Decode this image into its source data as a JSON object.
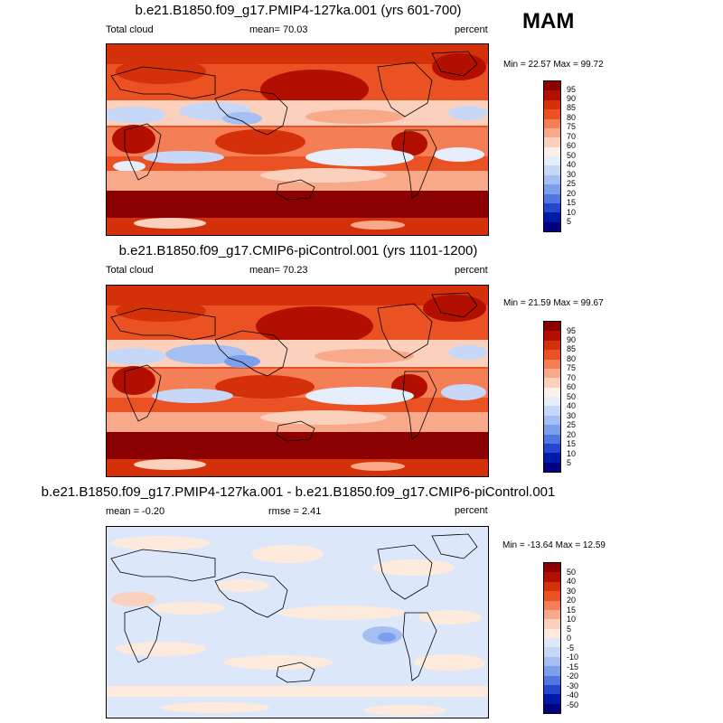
{
  "season": "MAM",
  "panels": [
    {
      "title": "b.e21.B1850.f09_g17.PMIP4-127ka.001 (yrs 601-700)",
      "left_label": "Total cloud",
      "center_label": "mean=  70.03",
      "right_label": "percent",
      "minmax_label": "Min =  22.57 Max =  99.72"
    },
    {
      "title": "b.e21.B1850.f09_g17.CMIP6-piControl.001 (yrs 1101-1200)",
      "left_label": "Total cloud",
      "center_label": "mean=  70.23",
      "right_label": "percent",
      "minmax_label": "Min =  21.59 Max =  99.67"
    },
    {
      "title": "b.e21.B1850.f09_g17.PMIP4-127ka.001 - b.e21.B1850.f09_g17.CMIP6-piControl.001",
      "left_label": "mean =  -0.20",
      "center_label": "rmse =   2.41",
      "right_label": "percent",
      "minmax_label": "Min = -13.64 Max =  12.59"
    }
  ],
  "chart_data": [
    {
      "type": "heatmap",
      "title": "b.e21.B1850.f09_g17.PMIP4-127ka.001 (yrs 601-700)",
      "variable": "Total cloud",
      "units": "percent",
      "mean": 70.03,
      "min": 22.57,
      "max": 99.72,
      "colorbar_levels": [
        "95",
        "90",
        "85",
        "80",
        "75",
        "70",
        "60",
        "50",
        "40",
        "30",
        "25",
        "20",
        "15",
        "10",
        "5"
      ],
      "colorbar_colors": [
        "#8b0000",
        "#b30f00",
        "#d4300a",
        "#ea5224",
        "#f47f56",
        "#f8a98a",
        "#fbd1bd",
        "#fdf0e8",
        "#e6eefc",
        "#c6d7f8",
        "#a6bff2",
        "#7d9eea",
        "#5276e0",
        "#2547cd",
        "#001aa8",
        "#000080"
      ]
    },
    {
      "type": "heatmap",
      "title": "b.e21.B1850.f09_g17.CMIP6-piControl.001 (yrs 1101-1200)",
      "variable": "Total cloud",
      "units": "percent",
      "mean": 70.23,
      "min": 21.59,
      "max": 99.67,
      "colorbar_levels": [
        "95",
        "90",
        "85",
        "80",
        "75",
        "70",
        "60",
        "50",
        "40",
        "30",
        "25",
        "20",
        "15",
        "10",
        "5"
      ],
      "colorbar_colors": [
        "#8b0000",
        "#b30f00",
        "#d4300a",
        "#ea5224",
        "#f47f56",
        "#f8a98a",
        "#fbd1bd",
        "#fdf0e8",
        "#e6eefc",
        "#c6d7f8",
        "#a6bff2",
        "#7d9eea",
        "#5276e0",
        "#2547cd",
        "#001aa8",
        "#000080"
      ]
    },
    {
      "type": "heatmap",
      "title": "b.e21.B1850.f09_g17.PMIP4-127ka.001 - b.e21.B1850.f09_g17.CMIP6-piControl.001",
      "units": "percent",
      "mean": -0.2,
      "rmse": 2.41,
      "min": -13.64,
      "max": 12.59,
      "colorbar_levels": [
        "50",
        "40",
        "30",
        "20",
        "15",
        "10",
        "5",
        "0",
        "-5",
        "-10",
        "-15",
        "-20",
        "-30",
        "-40",
        "-50"
      ],
      "colorbar_colors": [
        "#8b0000",
        "#b30f00",
        "#d4300a",
        "#ea5224",
        "#f47f56",
        "#f8a98a",
        "#fbd1bd",
        "#fdeadd",
        "#dce8fa",
        "#c6d7f8",
        "#a6bff2",
        "#7d9eea",
        "#5276e0",
        "#2547cd",
        "#001aa8",
        "#000080"
      ]
    }
  ]
}
